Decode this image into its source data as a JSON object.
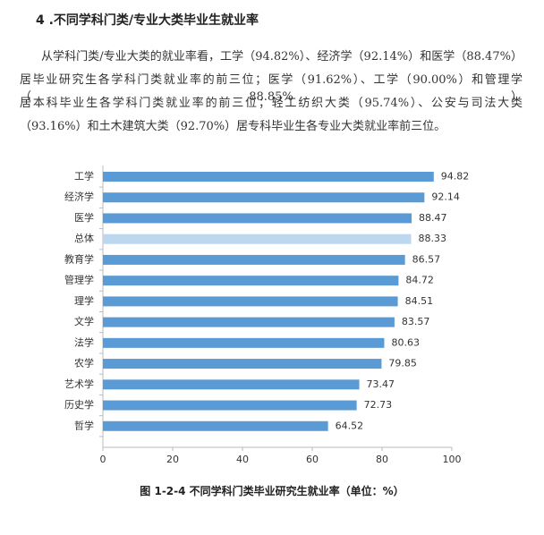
{
  "heading": "4 .不同学科门类/专业大类毕业生就业率",
  "paragraph": [
    "从学科门类/专业大类的就业率看，工学（94.82%）、经济学（92.14%）和医学（88.47%）",
    "居毕业研究生各学科门类就业率的前三位；医学（91.62%）、工学（90.00%）和管理学（88.85%）",
    "居本科毕业生各学科门类就业率的前三位；轻工纺织大类（95.74%）、公安与司法大类",
    "（93.16%）和土木建筑大类（92.70%）居专科毕业生各专业大类就业率前三位。"
  ],
  "chart_data": {
    "type": "barh",
    "categories": [
      "工学",
      "经济学",
      "医学",
      "总体",
      "教育学",
      "管理学",
      "理学",
      "文学",
      "法学",
      "农学",
      "艺术学",
      "历史学",
      "哲学"
    ],
    "values": [
      94.82,
      92.14,
      88.47,
      88.33,
      86.57,
      84.72,
      84.51,
      83.57,
      80.63,
      79.85,
      73.47,
      72.73,
      64.52
    ],
    "colors": [
      "#5b9bd5",
      "#5b9bd5",
      "#5b9bd5",
      "#bdd7ee",
      "#5b9bd5",
      "#5b9bd5",
      "#5b9bd5",
      "#5b9bd5",
      "#5b9bd5",
      "#5b9bd5",
      "#5b9bd5",
      "#5b9bd5",
      "#5b9bd5"
    ],
    "xlim": [
      0,
      100
    ],
    "xticks": [
      0,
      20,
      40,
      60,
      80,
      100
    ],
    "grid": false
  },
  "caption": "图 1-2-4  不同学科门类毕业研究生就业率（单位：%）"
}
